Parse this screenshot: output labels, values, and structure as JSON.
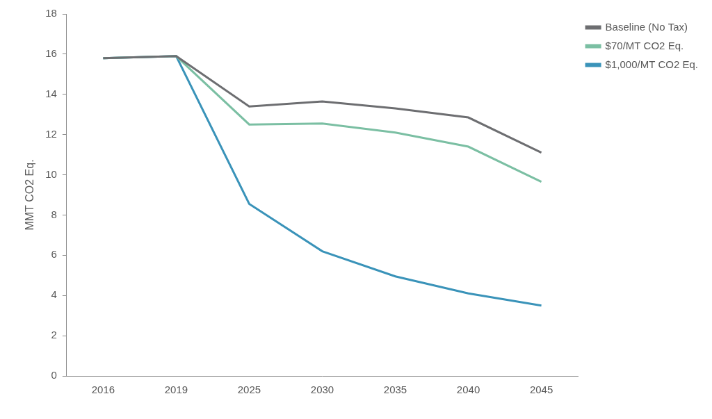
{
  "chart_data": {
    "type": "line",
    "y_label": "MMT CO2 Eq.",
    "categories": [
      "2016",
      "2019",
      "2025",
      "2030",
      "2035",
      "2040",
      "2045"
    ],
    "series": [
      {
        "name": "Baseline (No Tax)",
        "color": "#6d6e71",
        "values": [
          15.8,
          15.9,
          13.4,
          13.65,
          13.3,
          12.85,
          11.1
        ]
      },
      {
        "name": "$70/MT CO2 Eq.",
        "color": "#7bbfa3",
        "values": [
          15.8,
          15.9,
          12.5,
          12.55,
          12.1,
          11.4,
          9.65
        ]
      },
      {
        "name": "$1,000/MT CO2 Eq.",
        "color": "#3a93b9",
        "values": [
          15.8,
          15.9,
          8.55,
          6.2,
          4.95,
          4.1,
          3.5
        ]
      }
    ],
    "ylim": [
      0,
      18
    ],
    "yticks": [
      0,
      2,
      4,
      6,
      8,
      10,
      12,
      14,
      16,
      18
    ],
    "grid": false,
    "legend": "right"
  }
}
